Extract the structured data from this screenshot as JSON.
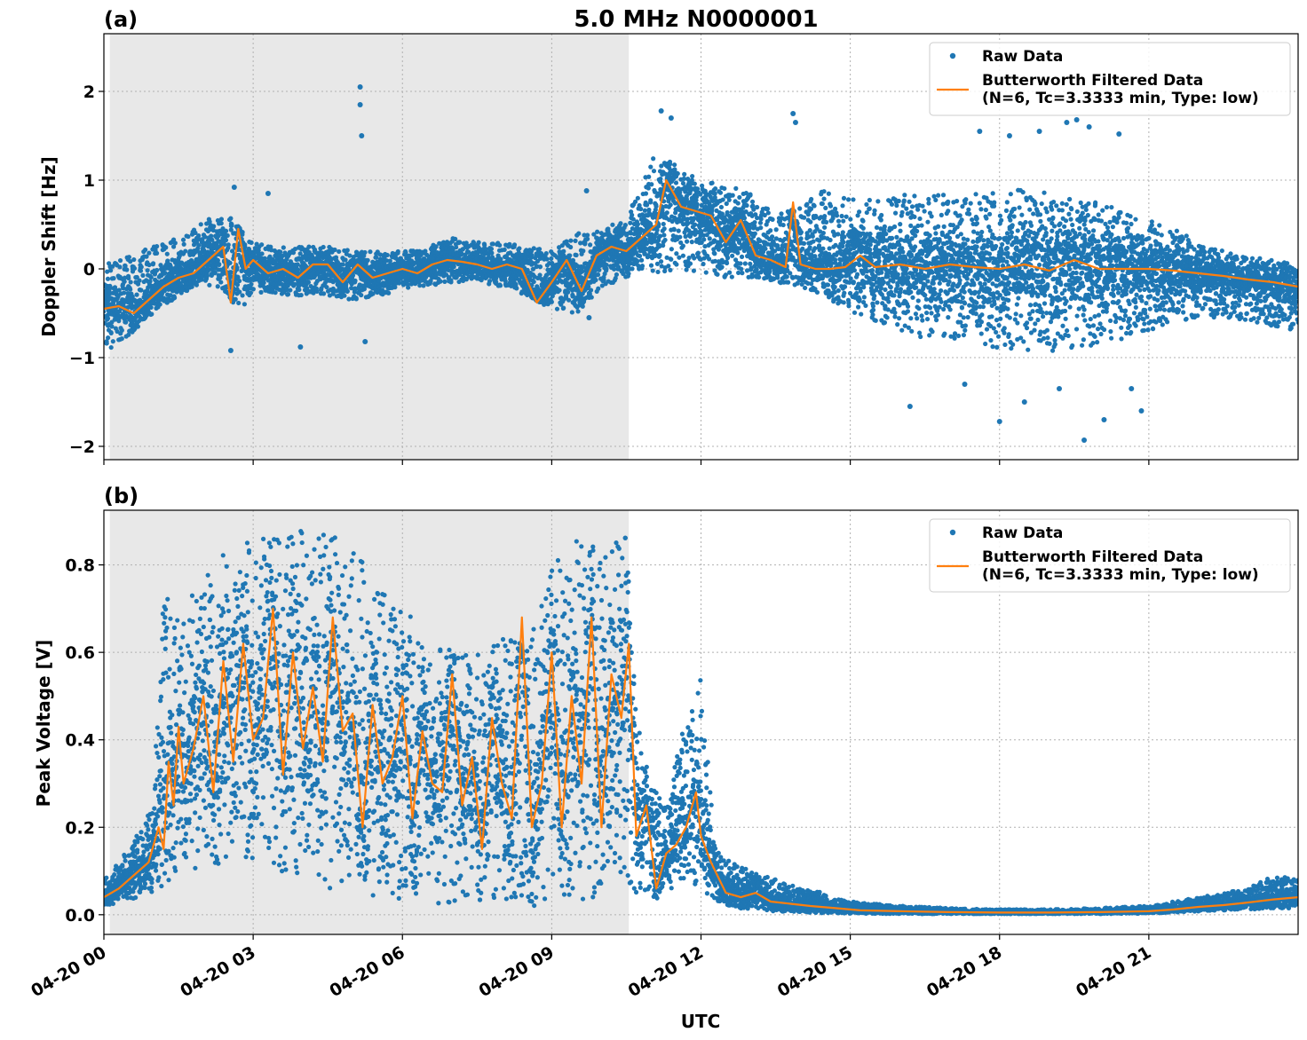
{
  "figure": {
    "title": "5.0 MHz N0000001",
    "xlabel": "UTC",
    "x_tick_labels": [
      "04-20 00",
      "04-20 03",
      "04-20 06",
      "04-20 09",
      "04-20 12",
      "04-20 15",
      "04-20 18",
      "04-20 21"
    ],
    "series_colors": {
      "raw": "#1f77b4",
      "filtered": "#ff7f0e"
    },
    "shade_color": "#e8e8e8",
    "grid": true
  },
  "chart_data": [
    {
      "type": "scatter",
      "panel_label": "(a)",
      "ylabel": "Doppler Shift [Hz]",
      "xlim_hours": [
        0,
        24
      ],
      "ylim": [
        -2.15,
        2.65
      ],
      "y_ticks": [
        -2,
        -1,
        0,
        1,
        2
      ],
      "y_tick_labels": [
        "−2",
        "−1",
        "0",
        "1",
        "2"
      ],
      "shaded_hours": [
        0.12,
        10.55
      ],
      "legend_location": "upper right",
      "legend": {
        "raw": "Raw Data",
        "filtered_line1": "Butterworth Filtered Data",
        "filtered_line2": "(N=6, Tc=3.3333 min, Type: low)"
      },
      "series": [
        {
          "name": "Raw Data",
          "kind": "scatter-band",
          "x": [
            0,
            0.5,
            1,
            1.5,
            2,
            2.5,
            2.75,
            3,
            3.5,
            4,
            4.5,
            5,
            5.5,
            6,
            6.5,
            7,
            7.5,
            8,
            8.5,
            9,
            9.5,
            10,
            10.5,
            10.8,
            11,
            11.5,
            12,
            12.5,
            13,
            13.5,
            14,
            14.5,
            15,
            15.5,
            16,
            16.5,
            17,
            17.5,
            18,
            18.5,
            19,
            19.5,
            20,
            20.5,
            21,
            21.5,
            22,
            22.5,
            23,
            23.5,
            24
          ],
          "low": [
            -0.95,
            -0.75,
            -0.5,
            -0.3,
            -0.15,
            -0.3,
            -0.5,
            -0.25,
            -0.3,
            -0.3,
            -0.3,
            -0.35,
            -0.3,
            -0.25,
            -0.2,
            -0.15,
            -0.15,
            -0.2,
            -0.3,
            -0.45,
            -0.5,
            -0.2,
            -0.1,
            0.0,
            -0.1,
            0.0,
            -0.05,
            -0.1,
            -0.1,
            -0.15,
            -0.2,
            -0.3,
            -0.5,
            -0.6,
            -0.7,
            -0.8,
            -0.8,
            -0.85,
            -0.9,
            -0.95,
            -0.95,
            -0.9,
            -0.85,
            -0.8,
            -0.7,
            -0.6,
            -0.55,
            -0.55,
            -0.6,
            -0.65,
            -0.7
          ],
          "high": [
            0.05,
            0.15,
            0.25,
            0.35,
            0.55,
            0.6,
            0.45,
            0.3,
            0.25,
            0.25,
            0.25,
            0.2,
            0.2,
            0.2,
            0.25,
            0.35,
            0.3,
            0.3,
            0.25,
            0.2,
            0.4,
            0.45,
            0.6,
            0.9,
            1.3,
            1.2,
            1.0,
            0.95,
            0.85,
            0.6,
            0.7,
            0.9,
            0.8,
            0.8,
            0.85,
            0.9,
            0.85,
            0.85,
            0.9,
            0.9,
            0.85,
            0.8,
            0.75,
            0.65,
            0.55,
            0.45,
            0.3,
            0.2,
            0.15,
            0.1,
            0.05
          ],
          "spikes": [
            {
              "x": 2.55,
              "y": -0.92
            },
            {
              "x": 2.62,
              "y": 0.92
            },
            {
              "x": 3.3,
              "y": 0.85
            },
            {
              "x": 3.95,
              "y": -0.88
            },
            {
              "x": 5.15,
              "y": 2.05
            },
            {
              "x": 5.15,
              "y": 1.85
            },
            {
              "x": 5.18,
              "y": 1.5
            },
            {
              "x": 5.25,
              "y": -0.82
            },
            {
              "x": 9.7,
              "y": 0.88
            },
            {
              "x": 9.75,
              "y": -0.55
            },
            {
              "x": 11.2,
              "y": 1.78
            },
            {
              "x": 11.4,
              "y": 1.7
            },
            {
              "x": 13.85,
              "y": 1.75
            },
            {
              "x": 13.9,
              "y": 1.65
            },
            {
              "x": 16.2,
              "y": -1.55
            },
            {
              "x": 17.3,
              "y": -1.3
            },
            {
              "x": 17.6,
              "y": 1.55
            },
            {
              "x": 18.0,
              "y": -1.72
            },
            {
              "x": 18.2,
              "y": 1.5
            },
            {
              "x": 18.5,
              "y": -1.5
            },
            {
              "x": 18.8,
              "y": 1.55
            },
            {
              "x": 19.2,
              "y": -1.35
            },
            {
              "x": 19.35,
              "y": 1.65
            },
            {
              "x": 19.7,
              "y": -1.93
            },
            {
              "x": 19.8,
              "y": 1.6
            },
            {
              "x": 20.1,
              "y": -1.7
            },
            {
              "x": 20.4,
              "y": 1.52
            },
            {
              "x": 20.65,
              "y": -1.35
            },
            {
              "x": 20.85,
              "y": -1.6
            },
            {
              "x": 19.55,
              "y": 1.68
            }
          ]
        },
        {
          "name": "Butterworth Filtered Data (N=6, Tc=3.3333 min, Type: low)",
          "kind": "line",
          "x": [
            0,
            0.3,
            0.6,
            0.9,
            1.2,
            1.5,
            1.8,
            2.1,
            2.4,
            2.55,
            2.7,
            2.85,
            3.0,
            3.3,
            3.6,
            3.9,
            4.2,
            4.5,
            4.8,
            5.1,
            5.4,
            5.7,
            6.0,
            6.3,
            6.6,
            6.9,
            7.2,
            7.5,
            7.8,
            8.1,
            8.4,
            8.7,
            9.0,
            9.3,
            9.6,
            9.9,
            10.2,
            10.5,
            10.8,
            11.1,
            11.3,
            11.6,
            11.9,
            12.2,
            12.5,
            12.8,
            13.1,
            13.4,
            13.7,
            13.85,
            14.0,
            14.3,
            14.6,
            14.9,
            15.2,
            15.5,
            16.0,
            16.5,
            17.0,
            17.5,
            18.0,
            18.5,
            19.0,
            19.5,
            20.0,
            20.5,
            21.0,
            21.5,
            22.0,
            22.5,
            23.0,
            23.5,
            24.0
          ],
          "y": [
            -0.45,
            -0.42,
            -0.5,
            -0.35,
            -0.2,
            -0.1,
            -0.05,
            0.1,
            0.25,
            -0.38,
            0.45,
            0.0,
            0.1,
            -0.05,
            0.0,
            -0.1,
            0.05,
            0.05,
            -0.15,
            0.05,
            -0.1,
            -0.05,
            0.0,
            -0.05,
            0.05,
            0.1,
            0.08,
            0.05,
            0.0,
            0.05,
            0.0,
            -0.38,
            -0.15,
            0.1,
            -0.25,
            0.15,
            0.25,
            0.2,
            0.35,
            0.5,
            1.0,
            0.7,
            0.65,
            0.6,
            0.3,
            0.55,
            0.15,
            0.1,
            0.02,
            0.75,
            0.05,
            0.0,
            0.0,
            0.02,
            0.15,
            0.02,
            0.05,
            0.0,
            0.05,
            0.02,
            0.0,
            0.05,
            -0.02,
            0.1,
            0.0,
            0.0,
            0.0,
            -0.02,
            -0.05,
            -0.08,
            -0.12,
            -0.15,
            -0.2
          ]
        }
      ]
    },
    {
      "type": "scatter",
      "panel_label": "(b)",
      "ylabel": "Peak Voltage [V]",
      "xlim_hours": [
        0,
        24
      ],
      "ylim": [
        -0.045,
        0.925
      ],
      "y_ticks": [
        0,
        0.2,
        0.4,
        0.6,
        0.8
      ],
      "y_tick_labels": [
        "0.0",
        "0.2",
        "0.4",
        "0.6",
        "0.8"
      ],
      "shaded_hours": [
        0.12,
        10.55
      ],
      "legend_location": "upper right",
      "legend": {
        "raw": "Raw Data",
        "filtered_line1": "Butterworth Filtered Data",
        "filtered_line2": "(N=6, Tc=3.3333 min, Type: low)"
      },
      "series": [
        {
          "name": "Raw Data",
          "kind": "scatter-band",
          "x": [
            0,
            0.5,
            1,
            1.2,
            1.5,
            2,
            2.5,
            3,
            3.5,
            4,
            4.5,
            5,
            5.5,
            6,
            6.5,
            7,
            7.5,
            8,
            8.5,
            9,
            9.5,
            10,
            10.5,
            10.7,
            11,
            11.3,
            11.6,
            12,
            12.3,
            12.6,
            13,
            13.5,
            14,
            14.5,
            15,
            16,
            17,
            18,
            19,
            20,
            21,
            21.5,
            22,
            22.5,
            23,
            23.5,
            24
          ],
          "low": [
            0.02,
            0.03,
            0.05,
            0.06,
            0.08,
            0.1,
            0.12,
            0.12,
            0.1,
            0.08,
            0.06,
            0.05,
            0.04,
            0.03,
            0.03,
            0.02,
            0.02,
            0.03,
            0.02,
            0.02,
            0.03,
            0.04,
            0.05,
            0.05,
            0.03,
            0.05,
            0.08,
            0.06,
            0.03,
            0.02,
            0.01,
            0.008,
            0.005,
            0.004,
            0.003,
            0.002,
            0.002,
            0.002,
            0.002,
            0.002,
            0.003,
            0.005,
            0.008,
            0.01,
            0.012,
            0.015,
            0.015
          ],
          "high": [
            0.08,
            0.15,
            0.25,
            0.78,
            0.68,
            0.78,
            0.84,
            0.86,
            0.87,
            0.88,
            0.87,
            0.85,
            0.75,
            0.7,
            0.65,
            0.6,
            0.6,
            0.68,
            0.6,
            0.8,
            0.86,
            0.84,
            0.87,
            0.45,
            0.3,
            0.25,
            0.42,
            0.55,
            0.15,
            0.12,
            0.1,
            0.08,
            0.06,
            0.05,
            0.03,
            0.02,
            0.015,
            0.012,
            0.012,
            0.015,
            0.02,
            0.03,
            0.04,
            0.05,
            0.06,
            0.09,
            0.08
          ],
          "spikes": []
        },
        {
          "name": "Butterworth Filtered Data (N=6, Tc=3.3333 min, Type: low)",
          "kind": "line",
          "x": [
            0,
            0.3,
            0.6,
            0.9,
            1.1,
            1.2,
            1.3,
            1.4,
            1.5,
            1.6,
            1.8,
            2.0,
            2.2,
            2.4,
            2.6,
            2.8,
            3.0,
            3.2,
            3.4,
            3.6,
            3.8,
            4.0,
            4.2,
            4.4,
            4.6,
            4.8,
            5.0,
            5.2,
            5.4,
            5.6,
            5.8,
            6.0,
            6.2,
            6.4,
            6.6,
            6.8,
            7.0,
            7.2,
            7.4,
            7.6,
            7.8,
            8.0,
            8.2,
            8.4,
            8.6,
            8.8,
            9.0,
            9.2,
            9.4,
            9.6,
            9.8,
            10.0,
            10.2,
            10.4,
            10.55,
            10.7,
            10.9,
            11.1,
            11.3,
            11.5,
            11.7,
            11.9,
            12.0,
            12.2,
            12.5,
            12.8,
            13.1,
            13.4,
            13.8,
            14.2,
            14.7,
            15.2,
            16,
            17,
            18,
            19,
            20,
            21,
            21.5,
            22,
            22.5,
            23,
            23.5,
            24
          ],
          "y": [
            0.04,
            0.06,
            0.09,
            0.12,
            0.2,
            0.15,
            0.35,
            0.25,
            0.43,
            0.3,
            0.38,
            0.5,
            0.28,
            0.58,
            0.35,
            0.62,
            0.4,
            0.45,
            0.7,
            0.32,
            0.6,
            0.38,
            0.52,
            0.35,
            0.68,
            0.42,
            0.46,
            0.2,
            0.48,
            0.3,
            0.36,
            0.5,
            0.22,
            0.42,
            0.3,
            0.28,
            0.55,
            0.25,
            0.36,
            0.15,
            0.45,
            0.3,
            0.22,
            0.68,
            0.2,
            0.3,
            0.6,
            0.2,
            0.5,
            0.3,
            0.68,
            0.2,
            0.55,
            0.45,
            0.62,
            0.18,
            0.25,
            0.06,
            0.14,
            0.16,
            0.2,
            0.28,
            0.18,
            0.12,
            0.05,
            0.04,
            0.05,
            0.03,
            0.025,
            0.02,
            0.015,
            0.01,
            0.008,
            0.006,
            0.005,
            0.005,
            0.006,
            0.008,
            0.012,
            0.018,
            0.022,
            0.028,
            0.035,
            0.04
          ]
        }
      ]
    }
  ]
}
